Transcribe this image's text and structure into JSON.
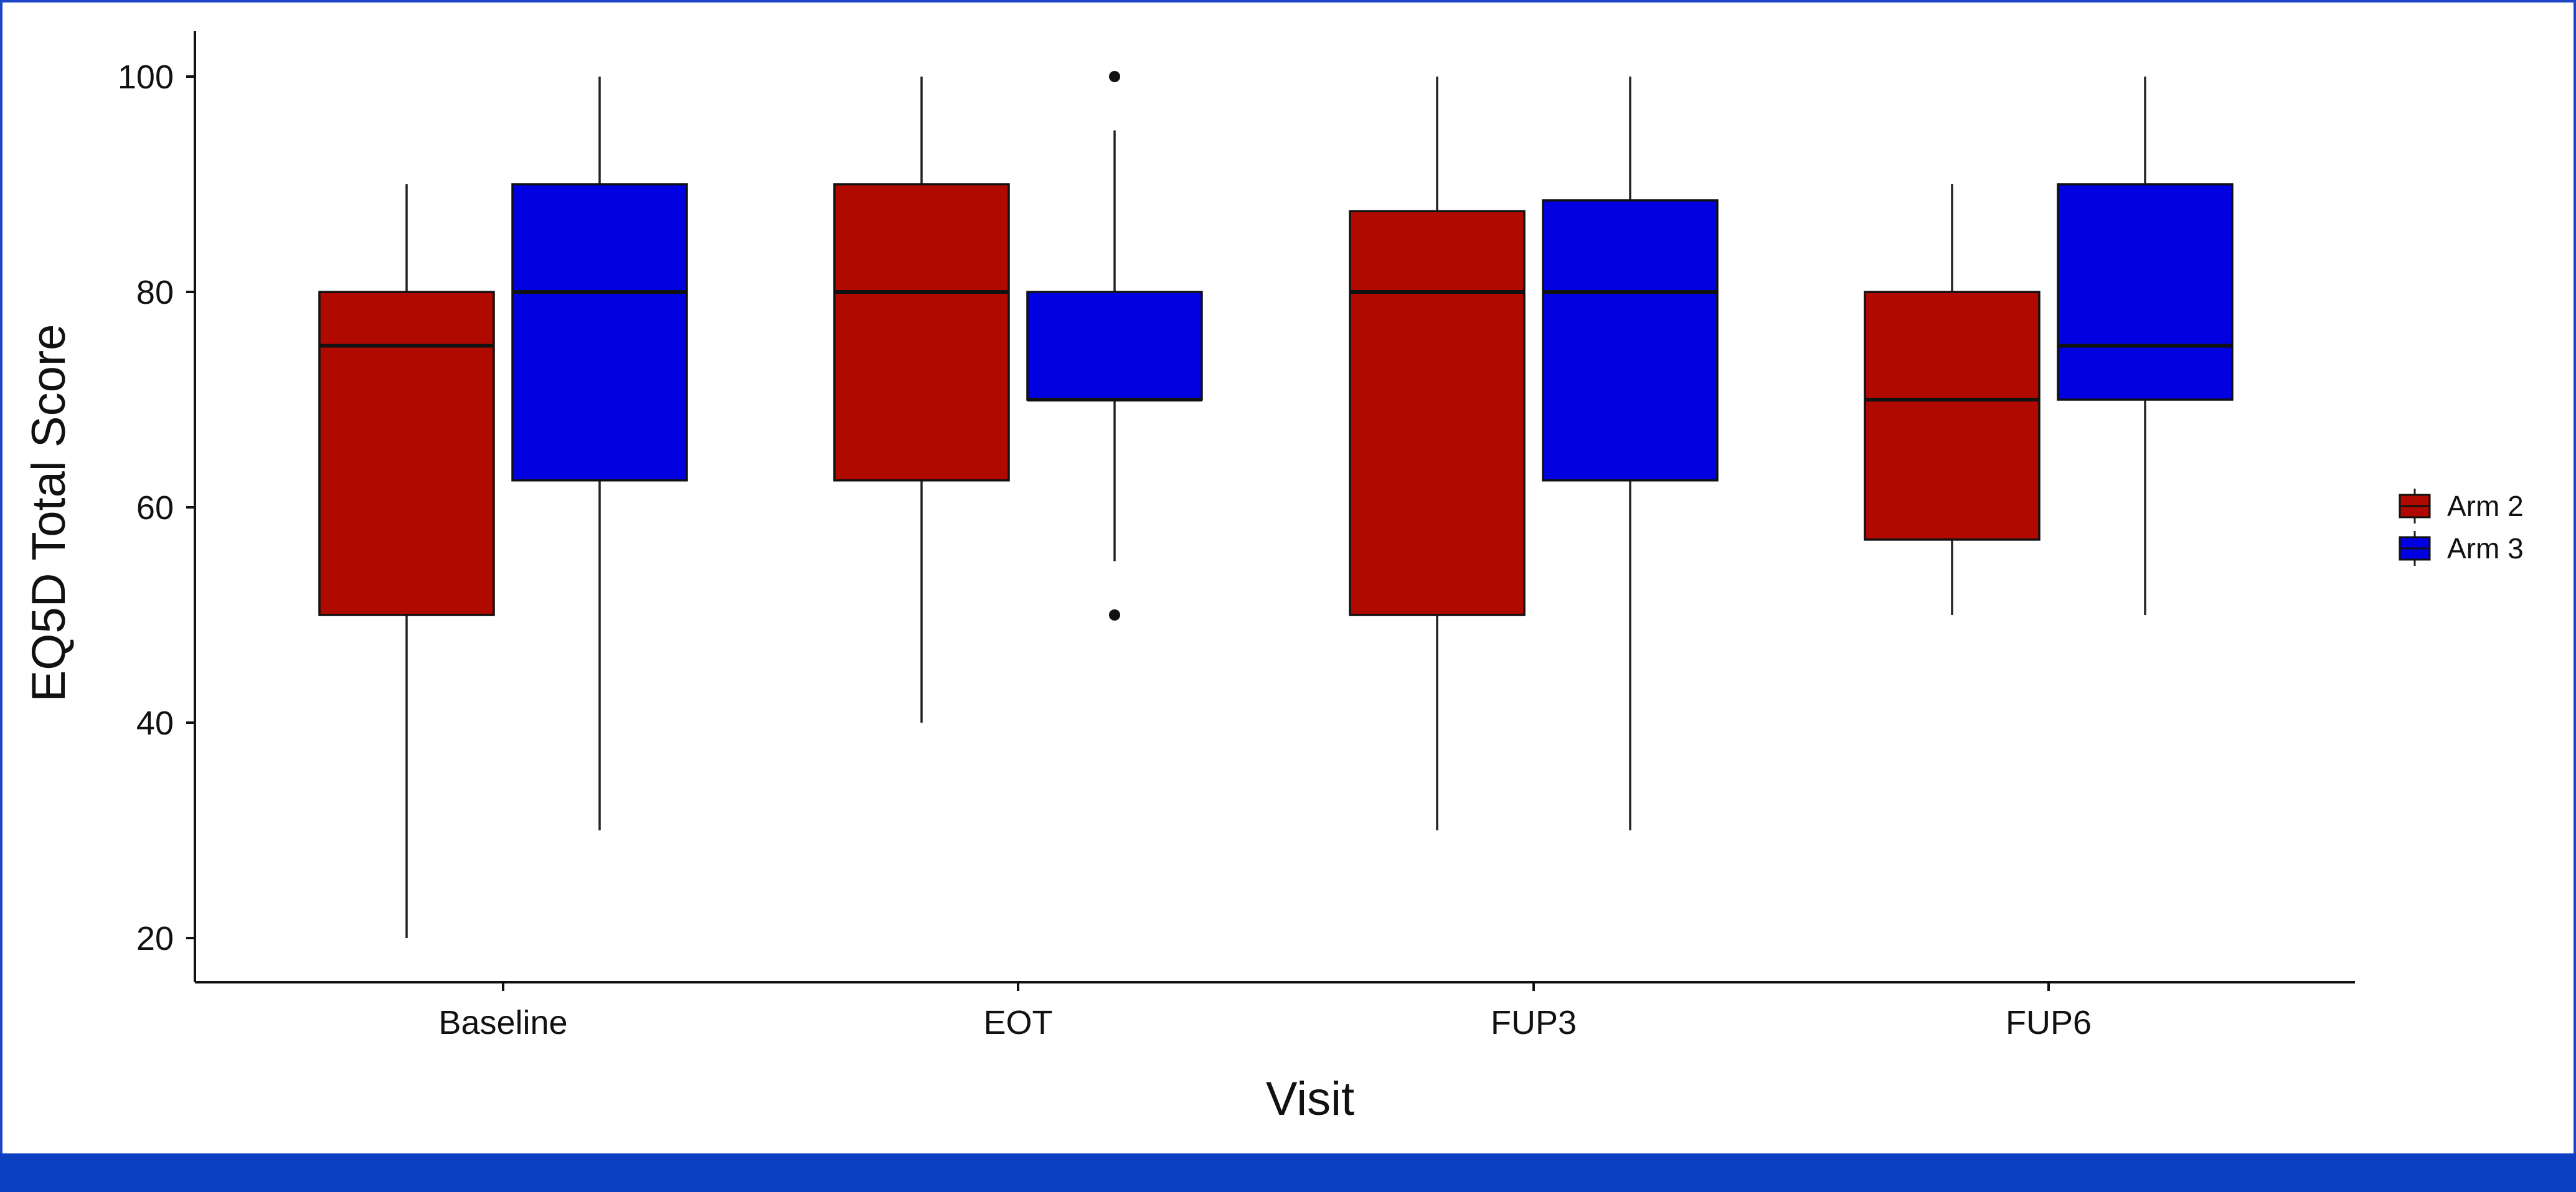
{
  "chart_data": {
    "type": "box",
    "xlabel": "Visit",
    "ylabel": "EQ5D Total Score",
    "ylim": [
      16,
      104
    ],
    "yticks": [
      20,
      40,
      60,
      80,
      100
    ],
    "categories": [
      "Baseline",
      "EOT",
      "FUP3",
      "FUP6"
    ],
    "grid": false,
    "legend_position": "right",
    "series": [
      {
        "name": "Arm 2",
        "color": "#b00a00",
        "boxes": [
          {
            "category": "Baseline",
            "whisker_low": 20,
            "q1": 50,
            "median": 75,
            "q3": 80,
            "whisker_high": 90,
            "outliers": []
          },
          {
            "category": "EOT",
            "whisker_low": 40,
            "q1": 62.5,
            "median": 80,
            "q3": 90,
            "whisker_high": 100,
            "outliers": []
          },
          {
            "category": "FUP3",
            "whisker_low": 30,
            "q1": 50,
            "median": 80,
            "q3": 87.5,
            "whisker_high": 100,
            "outliers": []
          },
          {
            "category": "FUP6",
            "whisker_low": 50,
            "q1": 57,
            "median": 70,
            "q3": 80,
            "whisker_high": 90,
            "outliers": []
          }
        ]
      },
      {
        "name": "Arm 3",
        "color": "#0000e0",
        "boxes": [
          {
            "category": "Baseline",
            "whisker_low": 30,
            "q1": 62.5,
            "median": 80,
            "q3": 90,
            "whisker_high": 100,
            "outliers": []
          },
          {
            "category": "EOT",
            "whisker_low": 55,
            "q1": 70,
            "median": 70,
            "q3": 80,
            "whisker_high": 95,
            "outliers": [
              100,
              50
            ]
          },
          {
            "category": "FUP3",
            "whisker_low": 30,
            "q1": 62.5,
            "median": 80,
            "q3": 88.5,
            "whisker_high": 100,
            "outliers": []
          },
          {
            "category": "FUP6",
            "whisker_low": 50,
            "q1": 70,
            "median": 75,
            "q3": 90,
            "whisker_high": 100,
            "outliers": []
          }
        ]
      }
    ]
  }
}
